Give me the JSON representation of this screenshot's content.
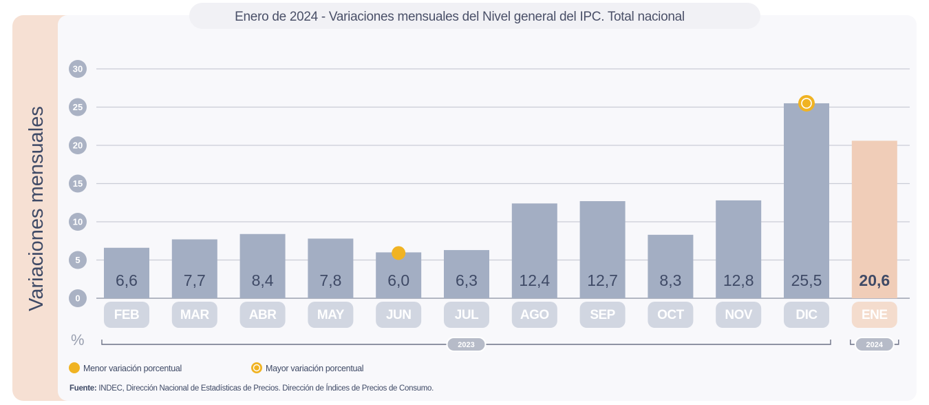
{
  "chart_data": {
    "type": "bar",
    "title": "Enero de 2024 - Variaciones mensuales del Nivel general del IPC. Total nacional",
    "ylabel": "Variaciones mensuales",
    "unit_label": "%",
    "ylim": [
      0,
      30
    ],
    "yticks": [
      "0",
      "5",
      "10",
      "15",
      "20",
      "25",
      "30"
    ],
    "grid": true,
    "categories": [
      "FEB",
      "MAR",
      "ABR",
      "MAY",
      "JUN",
      "JUL",
      "AGO",
      "SEP",
      "OCT",
      "NOV",
      "DIC",
      "ENE"
    ],
    "values": [
      6.6,
      7.7,
      8.4,
      7.8,
      6.0,
      6.3,
      12.4,
      12.7,
      8.3,
      12.8,
      25.5,
      20.6
    ],
    "value_labels": [
      "6,6",
      "7,7",
      "8,4",
      "7,8",
      "6,0",
      "6,3",
      "12,4",
      "12,7",
      "8,3",
      "12,8",
      "25,5",
      "20,6"
    ],
    "years": [
      {
        "label": "2023",
        "from": "FEB",
        "to": "DIC"
      },
      {
        "label": "2024",
        "from": "ENE",
        "to": "ENE"
      }
    ],
    "lowest_marker": "JUN",
    "highest_marker": "DIC",
    "legend": [
      {
        "label": "Menor variación porcentual",
        "marker": "filled-dot"
      },
      {
        "label": "Mayor variación porcentual",
        "marker": "ring-dot"
      }
    ],
    "legend_placement": "bottom-left",
    "source": {
      "prefix": "Fuente:",
      "text": " INDEC, Dirección Nacional de Estadísticas de Precios. Dirección de Índices de Precios de Consumo."
    },
    "colors": {
      "bar_2023": "#a3aec3",
      "bar_2024": "#f0cdb8",
      "month_pill_2023": "#d1d6e1",
      "month_pill_2024": "#f4dccd",
      "tick_circle": "#aab2c4",
      "marker": "#f0b323",
      "value_text": "#3f4a66",
      "accent_panel": "#f6e0d3",
      "plot_bg": "#f8f8fb"
    }
  }
}
